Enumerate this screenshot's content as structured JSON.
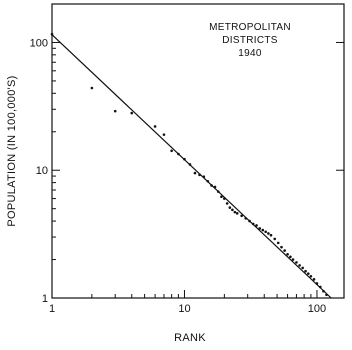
{
  "chart_data": {
    "type": "scatter",
    "title": "",
    "annotation": [
      "METROPOLITAN",
      "DISTRICTS",
      "1940"
    ],
    "xlabel": "RANK",
    "ylabel": "POPULATION (IN 100,000'S)",
    "xscale": "log",
    "yscale": "log",
    "xlim": [
      1,
      160
    ],
    "ylim": [
      1,
      200
    ],
    "xticks": [
      1,
      10,
      100
    ],
    "yticks": [
      1,
      10,
      100
    ],
    "xtick_labels": [
      "1",
      "10",
      "100"
    ],
    "ytick_labels": [
      "1",
      "10",
      "100"
    ],
    "grid": false,
    "fit_line": {
      "x": [
        1,
        128
      ],
      "y": [
        115,
        1
      ]
    },
    "points": [
      {
        "x": 1,
        "y": 116
      },
      {
        "x": 2,
        "y": 44
      },
      {
        "x": 3,
        "y": 29
      },
      {
        "x": 4,
        "y": 28
      },
      {
        "x": 6,
        "y": 22
      },
      {
        "x": 7,
        "y": 19
      },
      {
        "x": 8,
        "y": 14.2
      },
      {
        "x": 9,
        "y": 13.4
      },
      {
        "x": 10,
        "y": 12.2
      },
      {
        "x": 11,
        "y": 11.1
      },
      {
        "x": 12,
        "y": 9.5
      },
      {
        "x": 13,
        "y": 9.2
      },
      {
        "x": 14,
        "y": 8.9
      },
      {
        "x": 15,
        "y": 8.2
      },
      {
        "x": 16,
        "y": 7.6
      },
      {
        "x": 17,
        "y": 7.4
      },
      {
        "x": 18,
        "y": 6.8
      },
      {
        "x": 19,
        "y": 6.2
      },
      {
        "x": 20,
        "y": 6.0
      },
      {
        "x": 21,
        "y": 5.5
      },
      {
        "x": 22,
        "y": 5.1
      },
      {
        "x": 23,
        "y": 4.9
      },
      {
        "x": 24,
        "y": 4.7
      },
      {
        "x": 25,
        "y": 4.6
      },
      {
        "x": 27,
        "y": 4.4
      },
      {
        "x": 29,
        "y": 4.2
      },
      {
        "x": 31,
        "y": 4.0
      },
      {
        "x": 33,
        "y": 3.8
      },
      {
        "x": 35,
        "y": 3.7
      },
      {
        "x": 37,
        "y": 3.5
      },
      {
        "x": 39,
        "y": 3.4
      },
      {
        "x": 41,
        "y": 3.3
      },
      {
        "x": 43,
        "y": 3.2
      },
      {
        "x": 45,
        "y": 3.1
      },
      {
        "x": 48,
        "y": 2.9
      },
      {
        "x": 51,
        "y": 2.7
      },
      {
        "x": 54,
        "y": 2.5
      },
      {
        "x": 57,
        "y": 2.35
      },
      {
        "x": 60,
        "y": 2.2
      },
      {
        "x": 63,
        "y": 2.1
      },
      {
        "x": 66,
        "y": 2.0
      },
      {
        "x": 70,
        "y": 1.9
      },
      {
        "x": 74,
        "y": 1.8
      },
      {
        "x": 78,
        "y": 1.72
      },
      {
        "x": 82,
        "y": 1.62
      },
      {
        "x": 86,
        "y": 1.55
      },
      {
        "x": 90,
        "y": 1.48
      },
      {
        "x": 95,
        "y": 1.4
      },
      {
        "x": 100,
        "y": 1.3
      },
      {
        "x": 106,
        "y": 1.22
      },
      {
        "x": 112,
        "y": 1.13
      },
      {
        "x": 118,
        "y": 1.06
      }
    ]
  }
}
